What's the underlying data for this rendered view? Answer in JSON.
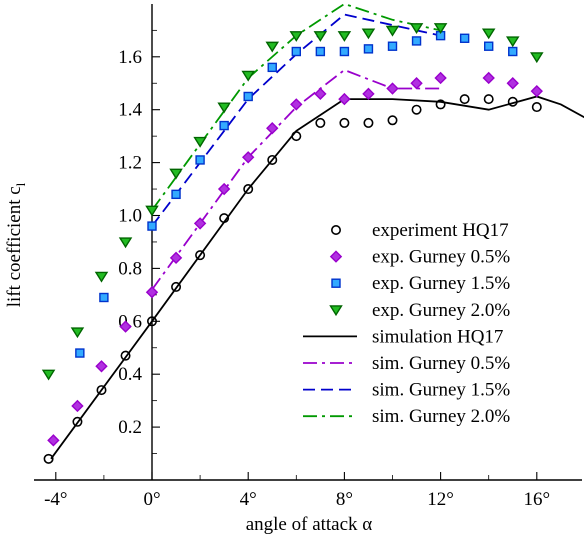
{
  "chart_data": {
    "type": "scatter",
    "title": "",
    "xlabel": "angle of attack α",
    "ylabel": "lift coefficient c_l",
    "ylabel_main": "lift coefficient c",
    "ylabel_sub": "l",
    "xlim": [
      -5,
      18
    ],
    "ylim": [
      0,
      1.8
    ],
    "x_ticks": [
      -4,
      0,
      4,
      8,
      12,
      16
    ],
    "x_tick_labels": [
      "-4°",
      "0°",
      "4°",
      "8°",
      "12°",
      "16°"
    ],
    "y_ticks": [
      0.2,
      0.4,
      0.6,
      0.8,
      1.0,
      1.2,
      1.4,
      1.6
    ],
    "y_tick_labels": [
      "0.2",
      "0.4",
      "0.6",
      "0.8",
      "1.0",
      "1.2",
      "1.4",
      "1.6"
    ],
    "grid": false,
    "legend_position": "right-center",
    "series": [
      {
        "name": "experiment HQ17",
        "kind": "marker",
        "marker": "circle",
        "color": "#000000",
        "fill": "none",
        "x": [
          -4.3,
          -3.1,
          -2.1,
          -1.1,
          0,
          1,
          2,
          3,
          4,
          5,
          6,
          7,
          8,
          9,
          10,
          11,
          12,
          13,
          14,
          15,
          16
        ],
        "y": [
          0.08,
          0.22,
          0.34,
          0.47,
          0.6,
          0.73,
          0.85,
          0.99,
          1.1,
          1.21,
          1.3,
          1.35,
          1.35,
          1.35,
          1.36,
          1.4,
          1.42,
          1.44,
          1.44,
          1.43,
          1.41
        ]
      },
      {
        "name": "exp. Gurney 0.5%",
        "kind": "marker",
        "marker": "diamond",
        "color": "#9900cc",
        "fill": "#b030e0",
        "x": [
          -4.1,
          -3.1,
          -2.1,
          -1.1,
          0,
          1,
          2,
          3,
          4,
          5,
          6,
          7,
          8,
          9,
          10,
          11,
          12,
          14,
          15,
          16
        ],
        "y": [
          0.15,
          0.28,
          0.43,
          0.58,
          0.71,
          0.84,
          0.97,
          1.1,
          1.22,
          1.33,
          1.42,
          1.46,
          1.44,
          1.46,
          1.48,
          1.5,
          1.52,
          1.52,
          1.5,
          1.47
        ]
      },
      {
        "name": "exp. Gurney 1.5%",
        "kind": "marker",
        "marker": "square",
        "color": "#0033cc",
        "fill": "#33aaff",
        "x": [
          -3,
          -2,
          0,
          1,
          2,
          3,
          4,
          5,
          6,
          7,
          8,
          9,
          10,
          11,
          12,
          13,
          14,
          15
        ],
        "y": [
          0.48,
          0.69,
          0.96,
          1.08,
          1.21,
          1.34,
          1.45,
          1.56,
          1.62,
          1.62,
          1.62,
          1.63,
          1.64,
          1.66,
          1.68,
          1.67,
          1.64,
          1.62
        ]
      },
      {
        "name": "exp. Gurney 2.0%",
        "kind": "marker",
        "marker": "triangle-down",
        "color": "#006600",
        "fill": "#22bb22",
        "x": [
          -4.3,
          -3.1,
          -2.1,
          -1.1,
          0,
          1,
          2,
          3,
          4,
          5,
          6,
          7,
          8,
          9,
          10,
          11,
          12,
          14,
          15,
          16
        ],
        "y": [
          0.4,
          0.56,
          0.77,
          0.9,
          1.02,
          1.16,
          1.28,
          1.41,
          1.53,
          1.64,
          1.68,
          1.68,
          1.68,
          1.69,
          1.7,
          1.71,
          1.71,
          1.69,
          1.66,
          1.6
        ]
      },
      {
        "name": "simulation HQ17",
        "kind": "line",
        "dash": "solid",
        "color": "#000000",
        "x": [
          -4.2,
          0,
          4,
          6,
          7,
          8,
          10,
          12,
          14,
          16,
          17,
          18
        ],
        "y": [
          0.08,
          0.6,
          1.1,
          1.32,
          1.38,
          1.44,
          1.44,
          1.43,
          1.4,
          1.45,
          1.42,
          1.37
        ]
      },
      {
        "name": "sim. Gurney 0.5%",
        "kind": "line",
        "dash": "dashdot",
        "color": "#9900cc",
        "x": [
          0,
          4,
          6,
          7,
          8,
          10,
          11,
          12
        ],
        "y": [
          0.72,
          1.22,
          1.41,
          1.48,
          1.55,
          1.48,
          1.48,
          1.48
        ]
      },
      {
        "name": "sim. Gurney 1.5%",
        "kind": "line",
        "dash": "dashed",
        "color": "#0000cc",
        "x": [
          0,
          4,
          6,
          8,
          10,
          12
        ],
        "y": [
          0.96,
          1.44,
          1.61,
          1.76,
          1.72,
          1.68
        ]
      },
      {
        "name": "sim. Gurney 2.0%",
        "kind": "line",
        "dash": "dashdot",
        "color": "#009900",
        "x": [
          0,
          4,
          6,
          8,
          10,
          12
        ],
        "y": [
          1.02,
          1.52,
          1.68,
          1.8,
          1.74,
          1.7
        ]
      }
    ]
  }
}
